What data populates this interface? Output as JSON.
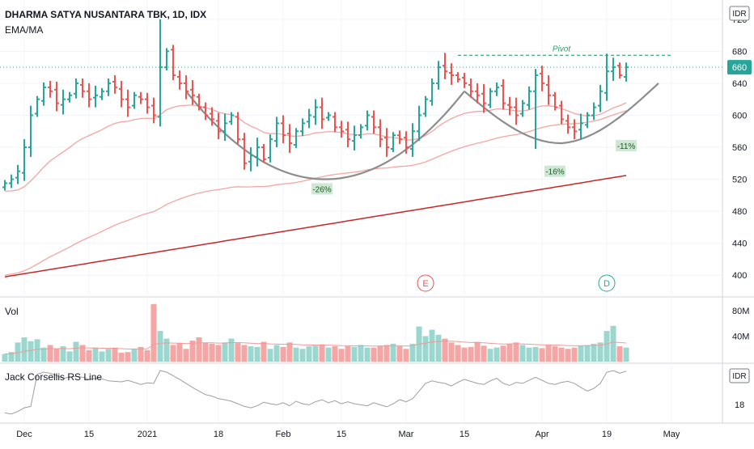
{
  "header": {
    "title": "DHARMA SATYA NUSANTARA TBK, 1D, IDX",
    "indicator": "EMA/MA"
  },
  "currency": "IDR",
  "last_price": "660",
  "colors": {
    "up": "#26a69a",
    "down": "#ef5350",
    "up_vol": "#9bd7cf",
    "down_vol": "#f5a6a4",
    "ema": "#f3a6a2",
    "ma200": "#c62828",
    "cup": "#8c8c8c",
    "pivot": "#2e9e6b",
    "rs": "#9e9e9e"
  },
  "chart_data": [
    {
      "type": "ohlc",
      "y_ticks": [
        400,
        440,
        480,
        520,
        560,
        600,
        640,
        680,
        720
      ],
      "ylim": [
        378,
        736
      ],
      "x_ticks": [
        {
          "label": "Dec",
          "bar": 3
        },
        {
          "label": "15",
          "bar": 13
        },
        {
          "label": "2021",
          "bar": 22
        },
        {
          "label": "18",
          "bar": 33
        },
        {
          "label": "Feb",
          "bar": 43
        },
        {
          "label": "15",
          "bar": 52
        },
        {
          "label": "Mar",
          "bar": 62
        },
        {
          "label": "15",
          "bar": 71
        },
        {
          "label": "Apr",
          "bar": 83
        },
        {
          "label": "19",
          "bar": 93
        },
        {
          "label": "May",
          "bar": 103
        }
      ],
      "closes": [
        515,
        520,
        530,
        560,
        600,
        620,
        635,
        630,
        615,
        620,
        625,
        640,
        630,
        620,
        625,
        630,
        640,
        635,
        620,
        610,
        625,
        620,
        610,
        600,
        660,
        680,
        650,
        640,
        630,
        625,
        610,
        600,
        595,
        580,
        590,
        600,
        570,
        540,
        550,
        560,
        545,
        570,
        590,
        575,
        565,
        580,
        590,
        600,
        610,
        595,
        600,
        585,
        580,
        570,
        575,
        585,
        600,
        585,
        570,
        560,
        575,
        570,
        560,
        580,
        600,
        620,
        640,
        660,
        655,
        650,
        645,
        640,
        630,
        625,
        615,
        630,
        635,
        615,
        610,
        600,
        615,
        630,
        650,
        640,
        625,
        610,
        595,
        585,
        580,
        590,
        600,
        610,
        630,
        655,
        660,
        650,
        660
      ],
      "pivot": {
        "label": "Pivot",
        "value": 675
      },
      "last_price_line": 660,
      "annotations": [
        "-26%",
        "-16%",
        "-11%"
      ],
      "events": [
        "E",
        "D"
      ]
    },
    {
      "type": "bar",
      "title": "Vol",
      "y_ticks": [
        "80M",
        "40M"
      ],
      "y_tick_values": [
        80,
        40
      ],
      "ylim": [
        0,
        95
      ],
      "values": [
        12,
        15,
        30,
        38,
        32,
        35,
        22,
        26,
        20,
        24,
        16,
        31,
        26,
        18,
        22,
        16,
        20,
        22,
        14,
        15,
        20,
        23,
        18,
        90,
        48,
        36,
        26,
        29,
        20,
        33,
        38,
        30,
        28,
        26,
        30,
        36,
        29,
        26,
        24,
        23,
        31,
        20,
        26,
        23,
        30,
        22,
        20,
        24,
        25,
        27,
        22,
        24,
        20,
        24,
        23,
        26,
        22,
        22,
        25,
        26,
        28,
        24,
        20,
        28,
        55,
        40,
        50,
        42,
        36,
        30,
        26,
        22,
        23,
        31,
        25,
        20,
        22,
        25,
        28,
        30,
        26,
        22,
        23,
        21,
        26,
        24,
        22,
        20,
        22,
        25,
        26,
        28,
        30,
        48,
        56,
        24,
        22
      ]
    },
    {
      "type": "line",
      "title": "Jack Corsellis RS Line",
      "y_ticks": [
        "IDR",
        "18"
      ],
      "ylim": [
        0,
        100
      ],
      "values": [
        12,
        10,
        15,
        22,
        25,
        88,
        92,
        90,
        85,
        80,
        82,
        84,
        82,
        78,
        80,
        79,
        75,
        74,
        73,
        76,
        72,
        68,
        71,
        70,
        95,
        92,
        85,
        78,
        70,
        62,
        55,
        48,
        45,
        40,
        38,
        35,
        30,
        25,
        22,
        26,
        33,
        30,
        28,
        32,
        26,
        35,
        30,
        28,
        34,
        38,
        32,
        36,
        30,
        34,
        30,
        28,
        26,
        32,
        28,
        24,
        30,
        38,
        34,
        40,
        55,
        70,
        75,
        72,
        70,
        65,
        72,
        78,
        74,
        70,
        68,
        75,
        80,
        70,
        66,
        72,
        70,
        76,
        82,
        76,
        70,
        68,
        72,
        74,
        70,
        62,
        55,
        60,
        70,
        92,
        95,
        90,
        94
      ]
    }
  ]
}
